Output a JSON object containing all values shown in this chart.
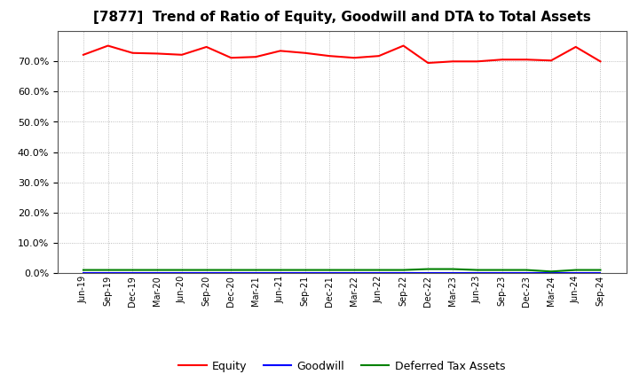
{
  "title": "[7877]  Trend of Ratio of Equity, Goodwill and DTA to Total Assets",
  "x_labels": [
    "Jun-19",
    "Sep-19",
    "Dec-19",
    "Mar-20",
    "Jun-20",
    "Sep-20",
    "Dec-20",
    "Mar-21",
    "Jun-21",
    "Sep-21",
    "Dec-21",
    "Mar-22",
    "Jun-22",
    "Sep-22",
    "Dec-22",
    "Mar-23",
    "Jun-23",
    "Sep-23",
    "Dec-23",
    "Mar-24",
    "Jun-24",
    "Sep-24"
  ],
  "equity": [
    0.722,
    0.752,
    0.728,
    0.726,
    0.722,
    0.748,
    0.712,
    0.715,
    0.735,
    0.728,
    0.718,
    0.712,
    0.718,
    0.752,
    0.695,
    0.7,
    0.7,
    0.706,
    0.706,
    0.703,
    0.748,
    0.7
  ],
  "goodwill": [
    0.0,
    0.0,
    0.0,
    0.0,
    0.0,
    0.0,
    0.0,
    0.0,
    0.0,
    0.0,
    0.0,
    0.0,
    0.0,
    0.0,
    0.0,
    0.0,
    0.0,
    0.0,
    0.0,
    0.0,
    0.0,
    0.0
  ],
  "dta": [
    0.01,
    0.01,
    0.01,
    0.01,
    0.01,
    0.01,
    0.01,
    0.01,
    0.01,
    0.01,
    0.01,
    0.01,
    0.01,
    0.01,
    0.013,
    0.013,
    0.01,
    0.01,
    0.01,
    0.005,
    0.01,
    0.01
  ],
  "equity_color": "#FF0000",
  "goodwill_color": "#0000FF",
  "dta_color": "#008000",
  "ylim": [
    0.0,
    0.8
  ],
  "yticks": [
    0.0,
    0.1,
    0.2,
    0.3,
    0.4,
    0.5,
    0.6,
    0.7
  ],
  "background_color": "#FFFFFF",
  "plot_bg_color": "#FFFFFF",
  "grid_color": "#AAAAAA",
  "title_fontsize": 11,
  "legend_labels": [
    "Equity",
    "Goodwill",
    "Deferred Tax Assets"
  ]
}
